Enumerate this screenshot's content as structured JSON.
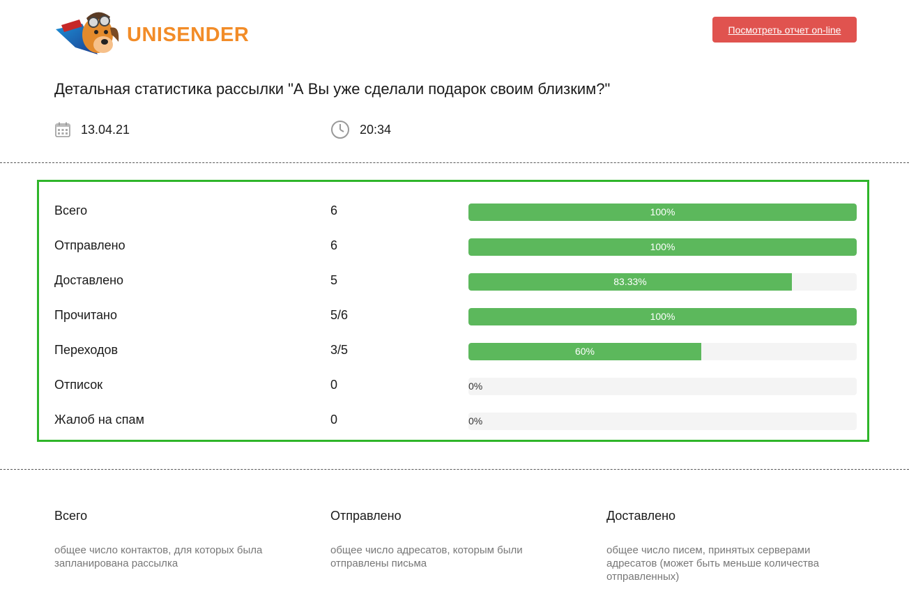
{
  "header": {
    "logo_text": "UNISENDER",
    "online_button_label": "Посмотреть отчет on-line"
  },
  "page_title": "Детальная статистика рассылки \"А Вы уже сделали подарок своим близким?\"",
  "meta": {
    "date": "13.04.21",
    "time": "20:34",
    "date_icon": "calendar-icon",
    "time_icon": "clock-icon"
  },
  "stats": {
    "rows": [
      {
        "label": "Всего",
        "value": "6",
        "percent_label": "100%",
        "fraction": 1.0
      },
      {
        "label": "Отправлено",
        "value": "6",
        "percent_label": "100%",
        "fraction": 1.0
      },
      {
        "label": "Доставлено",
        "value": "5",
        "percent_label": "83.33%",
        "fraction": 0.8333
      },
      {
        "label": "Прочитано",
        "value": "5/6",
        "percent_label": "100%",
        "fraction": 1.0
      },
      {
        "label": "Переходов",
        "value": "3/5",
        "percent_label": "60%",
        "fraction": 0.6
      },
      {
        "label": "Отписок",
        "value": "0",
        "percent_label": "0%",
        "fraction": 0
      },
      {
        "label": "Жалоб на спам",
        "value": "0",
        "percent_label": "0%",
        "fraction": 0
      }
    ]
  },
  "legend": [
    {
      "title": "Всего",
      "description": "общее число контактов, для которых была запланирована рассылка"
    },
    {
      "title": "Отправлено",
      "description": "общее число адресатов, которым были отправлены письма"
    },
    {
      "title": "Доставлено",
      "description": "общее число писем, принятых серверами адресатов (может быть меньше количества отправленных)"
    }
  ],
  "colors": {
    "accent_orange": "#f28c28",
    "button_red": "#e0534f",
    "bar_green": "#5cb85c",
    "border_green": "#2fb52a",
    "bar_track": "#f4f4f4"
  }
}
